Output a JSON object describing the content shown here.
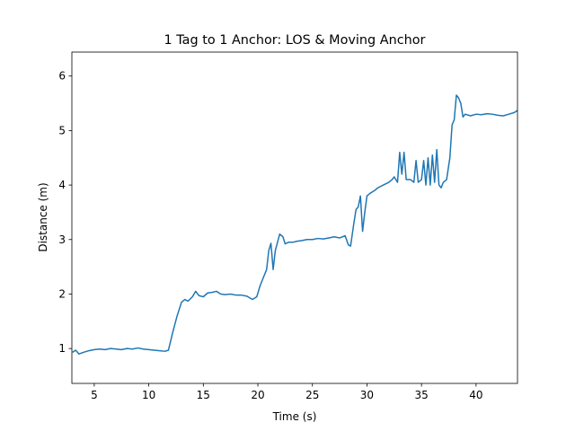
{
  "chart_data": {
    "type": "line",
    "title": "1 Tag to 1 Anchor: LOS & Moving Anchor",
    "x_label": "Time (s)",
    "y_label": "Distance (m)",
    "xlim": [
      2.95,
      43.8
    ],
    "ylim": [
      0.36,
      6.44
    ],
    "xticks": [
      5,
      10,
      15,
      20,
      25,
      30,
      35,
      40
    ],
    "yticks": [
      1,
      2,
      3,
      4,
      5,
      6
    ],
    "grid": false,
    "series": [
      {
        "color": "#1f77b4",
        "x": [
          3.0,
          3.3,
          3.6,
          4.0,
          4.5,
          5.0,
          5.5,
          6.0,
          6.5,
          7.0,
          7.5,
          8.0,
          8.5,
          9.0,
          9.5,
          10.0,
          10.5,
          11.0,
          11.5,
          11.8,
          12.2,
          12.6,
          13.0,
          13.3,
          13.6,
          14.0,
          14.3,
          14.6,
          15.0,
          15.4,
          15.8,
          16.2,
          16.6,
          17.0,
          17.5,
          18.0,
          18.5,
          19.0,
          19.5,
          19.9,
          20.2,
          20.5,
          20.8,
          21.0,
          21.2,
          21.4,
          21.6,
          21.8,
          22.0,
          22.3,
          22.5,
          22.8,
          23.2,
          23.6,
          24.0,
          24.5,
          25.0,
          25.5,
          26.0,
          26.5,
          27.0,
          27.5,
          28.0,
          28.3,
          28.5,
          28.8,
          29.0,
          29.2,
          29.4,
          29.6,
          29.8,
          30.0,
          30.3,
          30.7,
          31.0,
          31.5,
          32.0,
          32.3,
          32.5,
          32.8,
          33.0,
          33.2,
          33.4,
          33.6,
          34.0,
          34.3,
          34.5,
          34.7,
          35.0,
          35.2,
          35.4,
          35.6,
          35.8,
          36.0,
          36.2,
          36.4,
          36.6,
          36.8,
          37.0,
          37.3,
          37.6,
          37.8,
          38.0,
          38.2,
          38.4,
          38.6,
          38.8,
          39.0,
          39.5,
          40.0,
          40.5,
          41.0,
          41.5,
          42.0,
          42.5,
          43.0,
          43.5,
          43.8
        ],
        "values": [
          0.93,
          0.97,
          0.9,
          0.93,
          0.96,
          0.98,
          0.99,
          0.98,
          1.0,
          0.99,
          0.98,
          1.0,
          0.99,
          1.01,
          0.99,
          0.98,
          0.97,
          0.96,
          0.95,
          0.97,
          1.3,
          1.6,
          1.85,
          1.9,
          1.87,
          1.95,
          2.05,
          1.97,
          1.95,
          2.02,
          2.03,
          2.05,
          2.0,
          1.99,
          2.0,
          1.98,
          1.98,
          1.96,
          1.9,
          1.95,
          2.15,
          2.3,
          2.45,
          2.8,
          2.93,
          2.45,
          2.8,
          2.95,
          3.1,
          3.05,
          2.92,
          2.95,
          2.95,
          2.97,
          2.98,
          3.0,
          3.0,
          3.02,
          3.01,
          3.03,
          3.05,
          3.03,
          3.07,
          2.9,
          2.88,
          3.3,
          3.55,
          3.6,
          3.8,
          3.15,
          3.5,
          3.8,
          3.85,
          3.9,
          3.95,
          4.0,
          4.05,
          4.1,
          4.15,
          4.05,
          4.6,
          4.2,
          4.6,
          4.1,
          4.1,
          4.05,
          4.45,
          4.05,
          4.1,
          4.45,
          4.0,
          4.5,
          4.0,
          4.55,
          4.05,
          4.65,
          4.0,
          3.95,
          4.05,
          4.1,
          4.5,
          5.1,
          5.2,
          5.65,
          5.6,
          5.5,
          5.25,
          5.3,
          5.27,
          5.3,
          5.29,
          5.31,
          5.3,
          5.28,
          5.27,
          5.3,
          5.33,
          5.37
        ]
      }
    ]
  }
}
